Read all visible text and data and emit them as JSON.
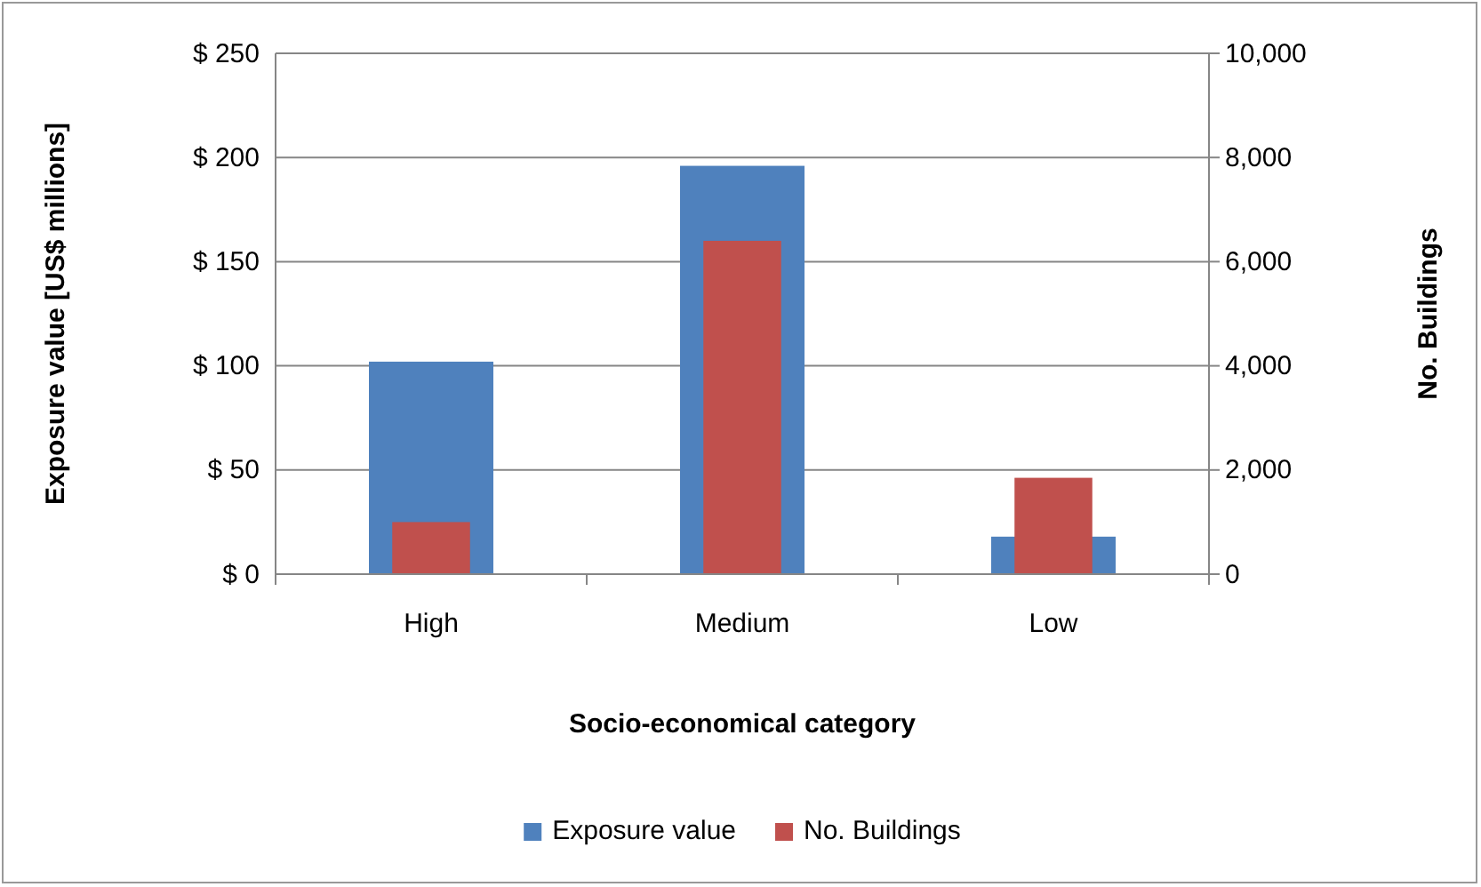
{
  "chart_data": {
    "type": "bar",
    "xlabel": "Socio-economical  category",
    "ylabel": "Exposure value  [US$ millions]",
    "y2label": "No. Buildings",
    "categories": [
      "High",
      "Medium",
      "Low"
    ],
    "series": [
      {
        "name": "Exposure value",
        "color": "#4f81bd",
        "values": [
          102,
          196,
          18
        ]
      },
      {
        "name": "No. Buildings",
        "color": "#c0504d",
        "values": [
          1000,
          6400,
          1850
        ],
        "axis": "y2"
      }
    ],
    "ylim": [
      0,
      250
    ],
    "yticks": [
      {
        "value": 0,
        "label": "$ 0"
      },
      {
        "value": 50,
        "label": "$ 50"
      },
      {
        "value": 100,
        "label": "$ 100"
      },
      {
        "value": 150,
        "label": "$ 150"
      },
      {
        "value": 200,
        "label": "$ 200"
      },
      {
        "value": 250,
        "label": "$ 250"
      }
    ],
    "y2lim": [
      0,
      10000
    ],
    "y2ticks": [
      0,
      {
        "value": 2000,
        "label": "2,000"
      },
      {
        "value": 4000,
        "label": "4,000"
      },
      {
        "value": 6000,
        "label": "6,000"
      },
      {
        "value": 8000,
        "label": "8,000"
      },
      {
        "value": 10000,
        "label": "10,000"
      }
    ],
    "grid": "y",
    "legend": "bottom"
  }
}
